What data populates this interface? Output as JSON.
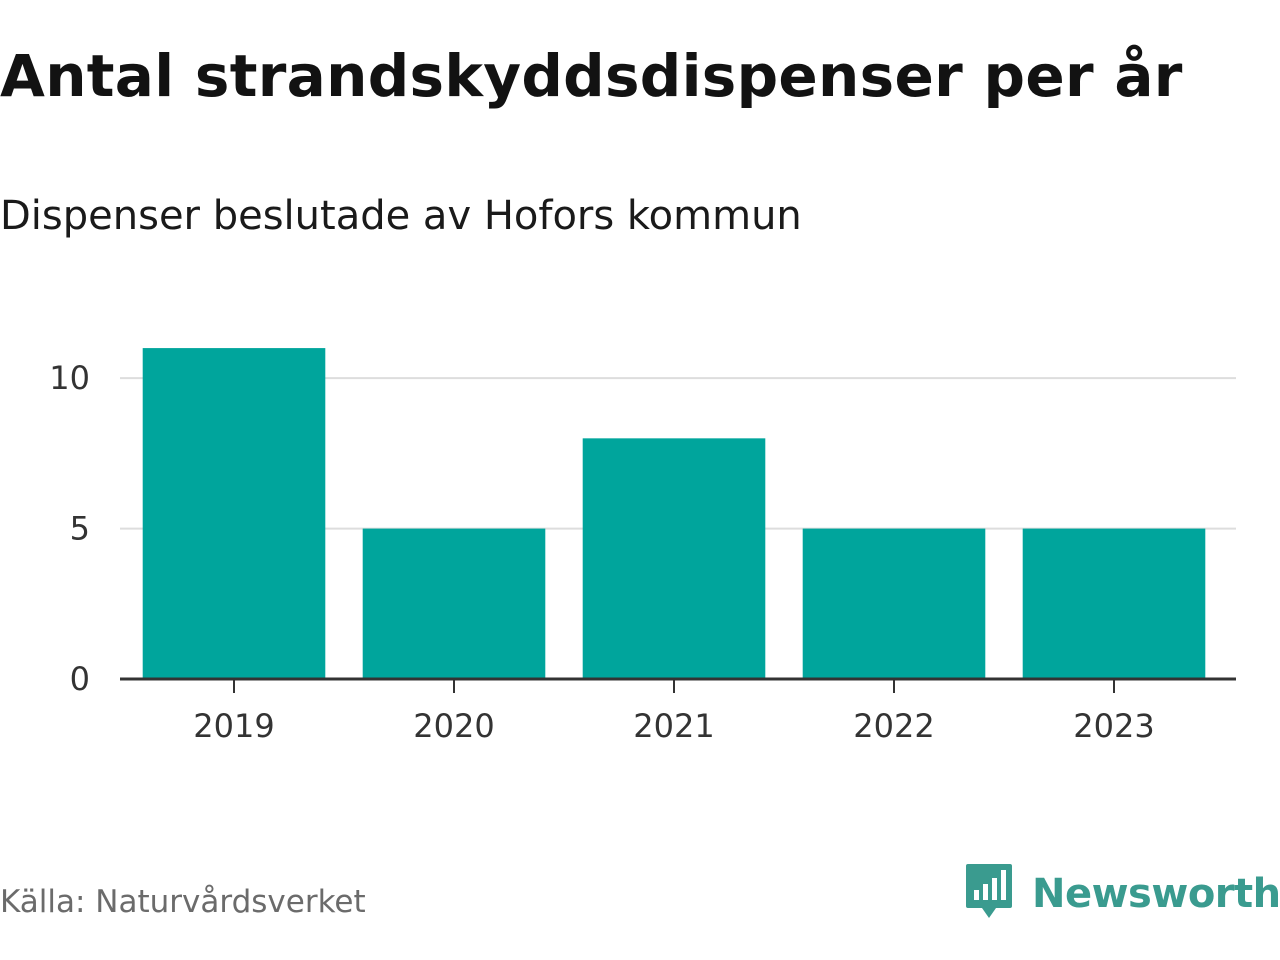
{
  "title": "Antal strandskyddsdispenser per år",
  "subtitle": "Dispenser beslutade av Hofors kommun",
  "source": "Källa: Naturvårdsverket",
  "brand": {
    "name": "Newsworthy",
    "icon": "newsworthy-logo-icon",
    "color": "#3a9b8f"
  },
  "colors": {
    "bar": "#00a59c",
    "grid": "#dddddd",
    "axis": "#333333"
  },
  "chart_data": {
    "type": "bar",
    "title": "Antal strandskyddsdispenser per år",
    "subtitle": "Dispenser beslutade av Hofors kommun",
    "categories": [
      "2019",
      "2020",
      "2021",
      "2022",
      "2023"
    ],
    "values": [
      11,
      5,
      8,
      5,
      5
    ],
    "xlabel": "",
    "ylabel": "",
    "ylim": [
      0,
      12
    ],
    "yticks": [
      0,
      5,
      10
    ],
    "grid": true,
    "legend": "none"
  }
}
